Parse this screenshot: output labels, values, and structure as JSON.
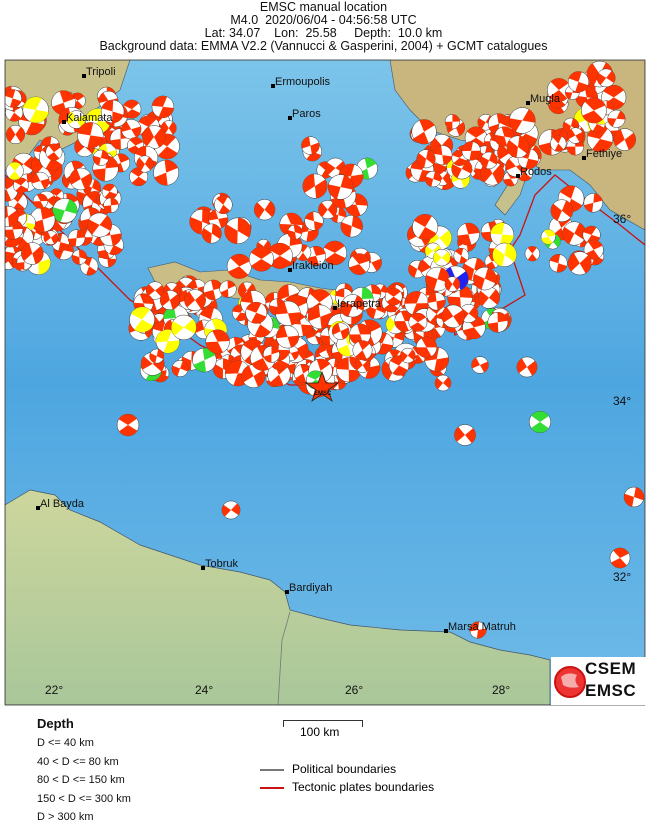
{
  "header": {
    "line1": "EMSC manual location",
    "line2": "M4.0  2020/06/04 - 04:56:58 UTC",
    "line3": "Lat: 34.07    Lon:  25.58     Depth:  10.0 km",
    "line4": "Background data: EMMA V2.2 (Vannucci & Gasperini, 2004) + GCMT catalogues"
  },
  "map": {
    "epicenter_label": "EMSC",
    "cities": [
      "Tripoli",
      "Ermoupolis",
      "Mugla",
      "Kalamata",
      "Paros",
      "Fethiye",
      "Rodos",
      "Irakleion",
      "Ierapetra",
      "Al Bayda",
      "Tobruk",
      "Bardiyah",
      "Marsa Matruh"
    ],
    "lon_ticks": [
      "22°",
      "24°",
      "26°",
      "28°"
    ],
    "lat_ticks": [
      "36°",
      "34°",
      "32°"
    ],
    "colors": {
      "ocean": "#5ab4e6",
      "land": "#c9d49a",
      "plate_boundary": "#cc1111",
      "political": "#777777",
      "mechanism_shallow": "#ff3300",
      "mechanism_40_80": "#ffff00",
      "mechanism_80_150": "#33dd33",
      "mechanism_150_300": "#2222ee"
    }
  },
  "legend": {
    "title": "Depth",
    "items": [
      "D <= 40 km",
      "40 < D <= 80 km",
      "80 < D <= 150 km",
      "150 < D <= 300 km",
      "D > 300 km"
    ],
    "scale": "100 km",
    "political": "Political boundaries",
    "tectonic": "Tectonic plates boundaries"
  },
  "logo": {
    "top": "CSEM",
    "bottom": "EMSC"
  }
}
